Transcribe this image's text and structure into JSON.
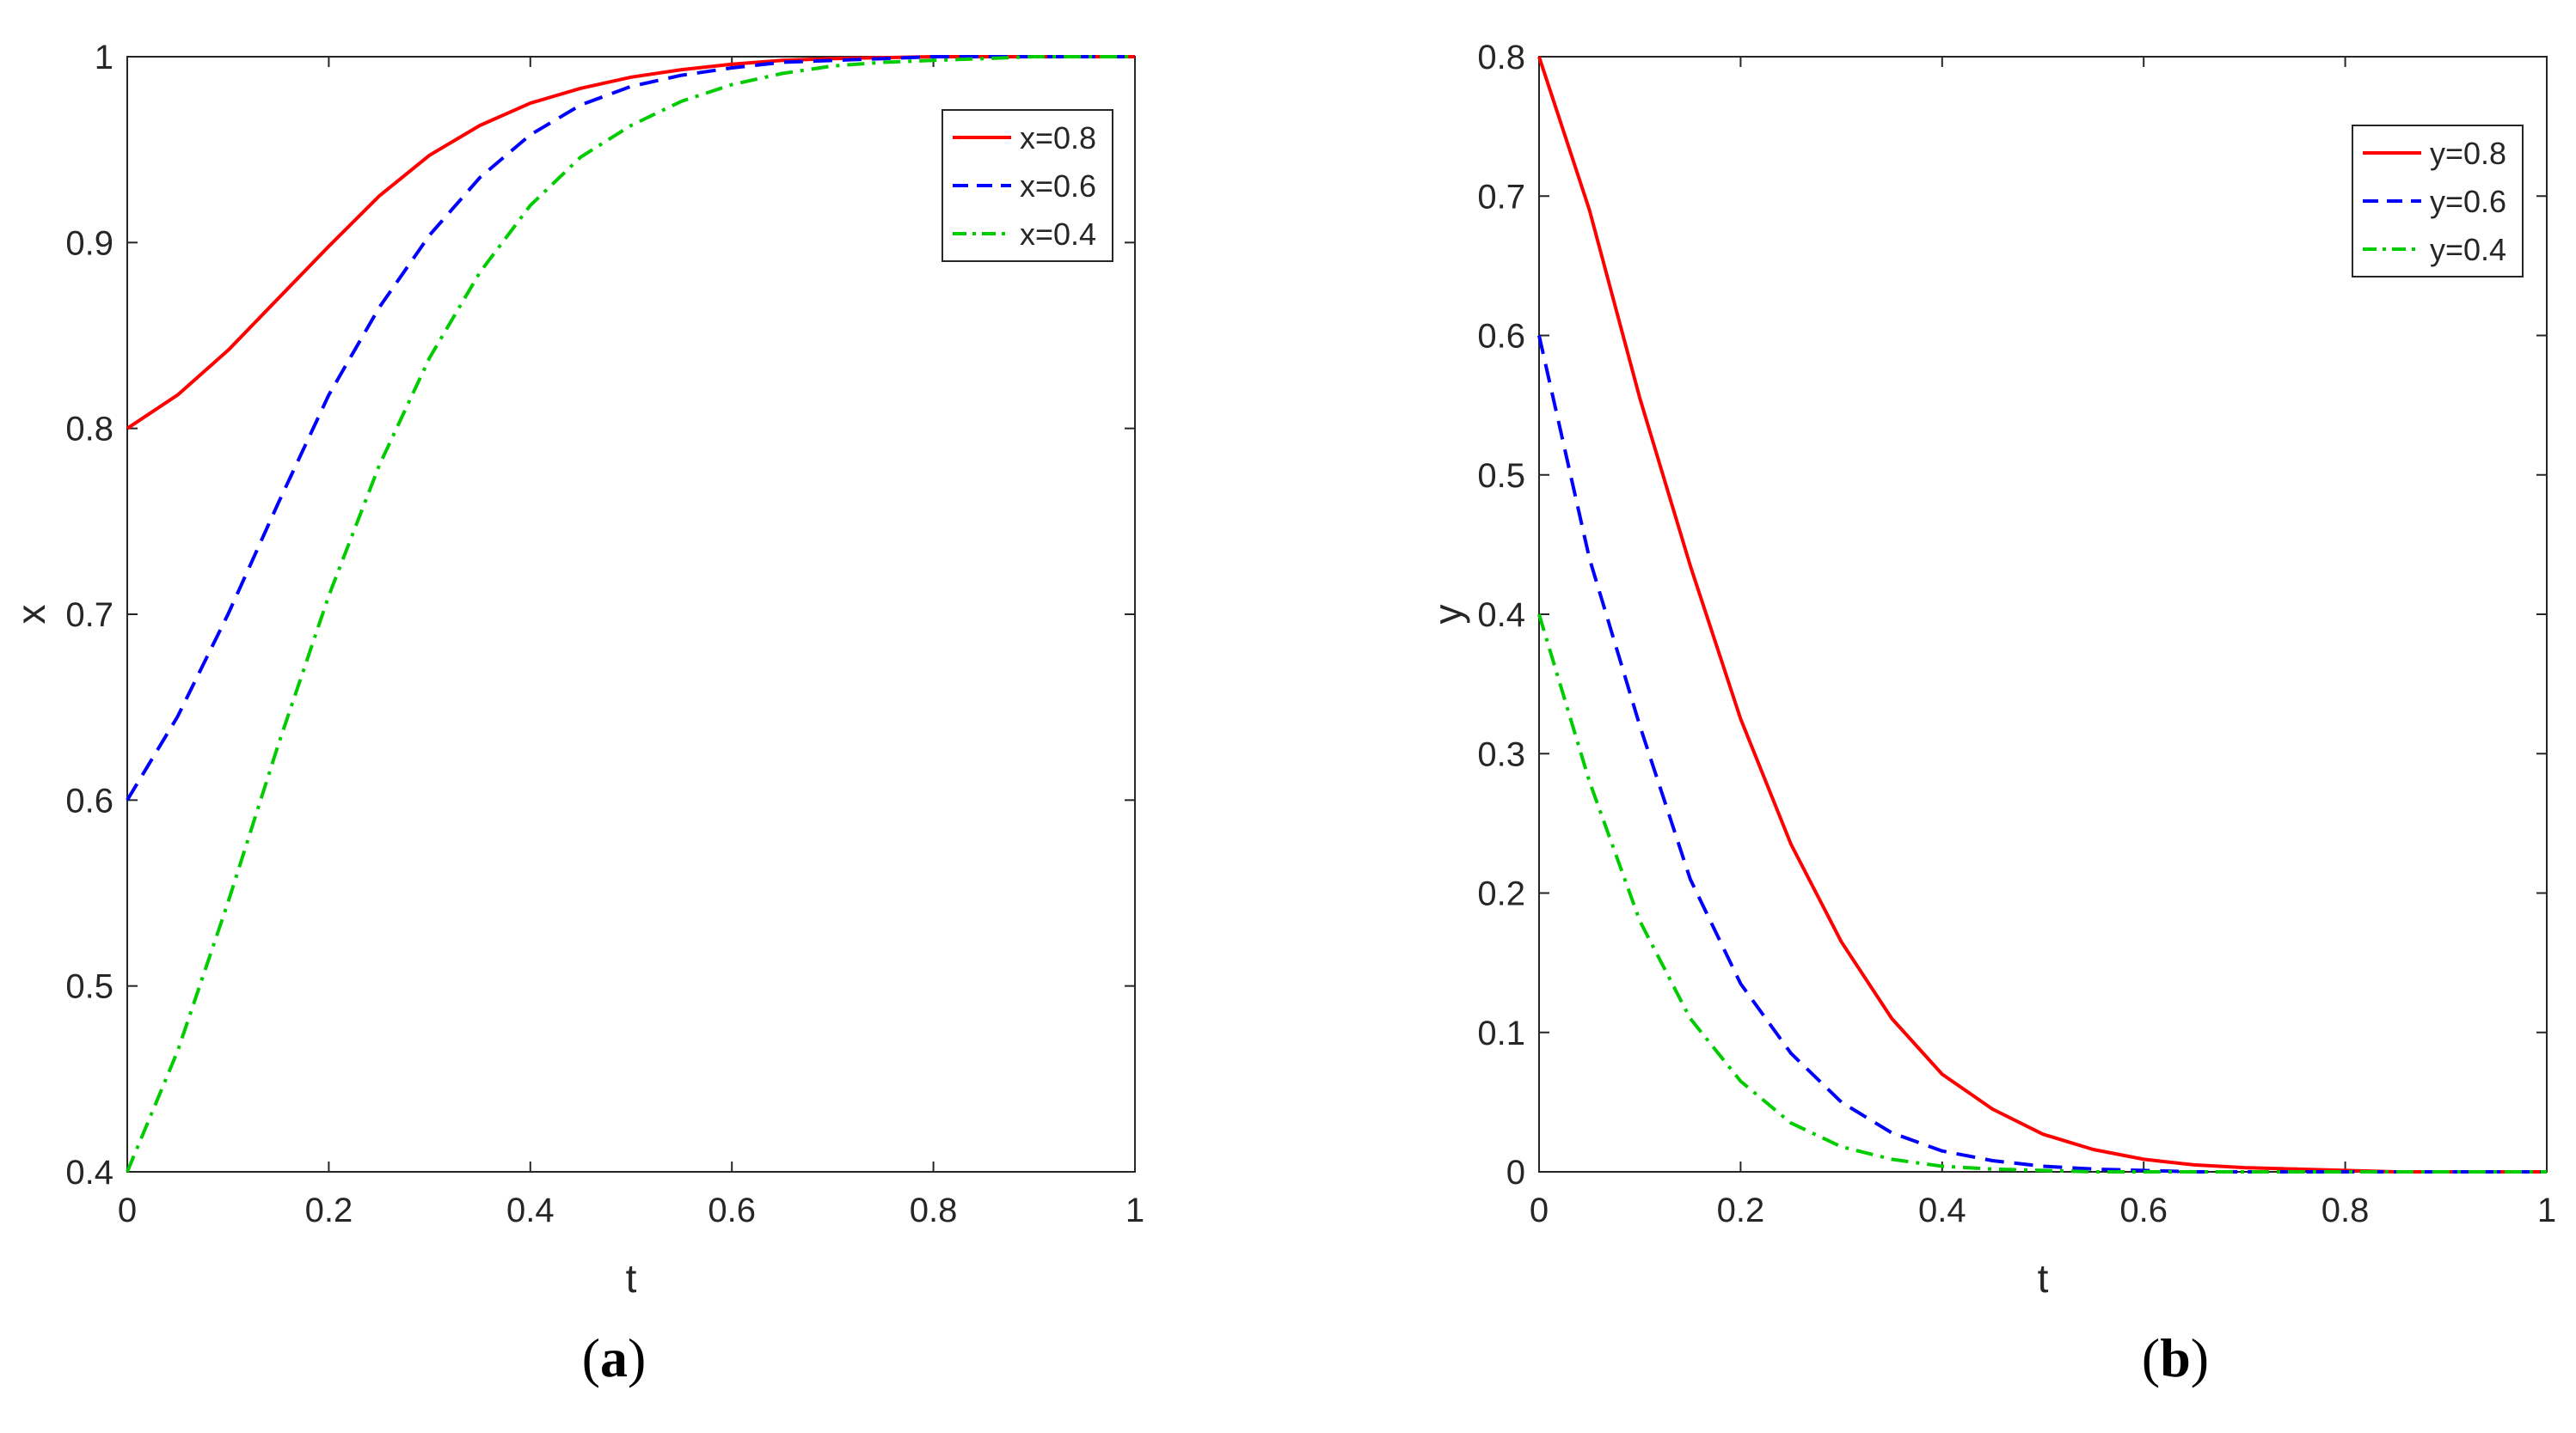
{
  "chart_data": [
    {
      "type": "line",
      "panel_label": "a",
      "xlabel": "t",
      "ylabel": "x",
      "xlim": [
        0,
        1
      ],
      "ylim": [
        0.4,
        1
      ],
      "xticks": [
        0,
        0.2,
        0.4,
        0.6,
        0.8,
        1
      ],
      "xtick_labels": [
        "0",
        "0.2",
        "0.4",
        "0.6",
        "0.8",
        "1"
      ],
      "yticks": [
        0.4,
        0.5,
        0.6,
        0.7,
        0.8,
        0.9,
        1
      ],
      "ytick_labels": [
        "0.4",
        "0.5",
        "0.6",
        "0.7",
        "0.8",
        "0.9",
        "1"
      ],
      "legend_position": "top-right",
      "x": [
        0,
        0.05,
        0.1,
        0.15,
        0.2,
        0.25,
        0.3,
        0.35,
        0.4,
        0.45,
        0.5,
        0.55,
        0.6,
        0.65,
        0.7,
        0.75,
        0.8,
        0.85,
        0.9,
        0.95,
        1
      ],
      "series": [
        {
          "name": "x=0.8",
          "color": "#ff0000",
          "style": "solid",
          "values": [
            0.8,
            0.818,
            0.842,
            0.87,
            0.898,
            0.925,
            0.947,
            0.963,
            0.975,
            0.983,
            0.989,
            0.993,
            0.996,
            0.998,
            0.999,
            0.9995,
            1,
            1,
            1,
            1,
            1
          ]
        },
        {
          "name": "x=0.6",
          "color": "#0000ff",
          "style": "dashed",
          "values": [
            0.6,
            0.645,
            0.7,
            0.76,
            0.818,
            0.865,
            0.904,
            0.935,
            0.958,
            0.974,
            0.984,
            0.99,
            0.994,
            0.997,
            0.998,
            0.999,
            1,
            1,
            1,
            1,
            1
          ]
        },
        {
          "name": "x=0.4",
          "color": "#00cc00",
          "style": "dashdot",
          "values": [
            0.4,
            0.465,
            0.545,
            0.63,
            0.71,
            0.78,
            0.838,
            0.884,
            0.92,
            0.946,
            0.963,
            0.976,
            0.985,
            0.991,
            0.995,
            0.997,
            0.998,
            0.999,
            1,
            1,
            1
          ]
        }
      ]
    },
    {
      "type": "line",
      "panel_label": "b",
      "xlabel": "t",
      "ylabel": "y",
      "xlim": [
        0,
        1
      ],
      "ylim": [
        0,
        0.8
      ],
      "xticks": [
        0,
        0.2,
        0.4,
        0.6,
        0.8,
        1
      ],
      "xtick_labels": [
        "0",
        "0.2",
        "0.4",
        "0.6",
        "0.8",
        "1"
      ],
      "yticks": [
        0,
        0.1,
        0.2,
        0.3,
        0.4,
        0.5,
        0.6,
        0.7,
        0.8
      ],
      "ytick_labels": [
        "0",
        "0.1",
        "0.2",
        "0.3",
        "0.4",
        "0.5",
        "0.6",
        "0.7",
        "0.8"
      ],
      "legend_position": "top-right",
      "x": [
        0,
        0.05,
        0.1,
        0.15,
        0.2,
        0.25,
        0.3,
        0.35,
        0.4,
        0.45,
        0.5,
        0.55,
        0.6,
        0.65,
        0.7,
        0.75,
        0.8,
        0.85,
        0.9,
        0.95,
        1
      ],
      "series": [
        {
          "name": "y=0.8",
          "color": "#ff0000",
          "style": "solid",
          "values": [
            0.8,
            0.69,
            0.555,
            0.435,
            0.325,
            0.235,
            0.165,
            0.11,
            0.07,
            0.045,
            0.027,
            0.016,
            0.009,
            0.005,
            0.003,
            0.002,
            0.001,
            0,
            0,
            0,
            0
          ]
        },
        {
          "name": "y=0.6",
          "color": "#0000ff",
          "style": "dashed",
          "values": [
            0.6,
            0.44,
            0.32,
            0.21,
            0.135,
            0.085,
            0.05,
            0.028,
            0.015,
            0.008,
            0.004,
            0.002,
            0.001,
            0,
            0,
            0,
            0,
            0,
            0,
            0,
            0
          ]
        },
        {
          "name": "y=0.4",
          "color": "#00cc00",
          "style": "dashdot",
          "values": [
            0.4,
            0.28,
            0.18,
            0.11,
            0.065,
            0.035,
            0.018,
            0.009,
            0.004,
            0.002,
            0.001,
            0,
            0,
            0,
            0,
            0,
            0,
            0,
            0,
            0,
            0
          ]
        }
      ]
    }
  ]
}
